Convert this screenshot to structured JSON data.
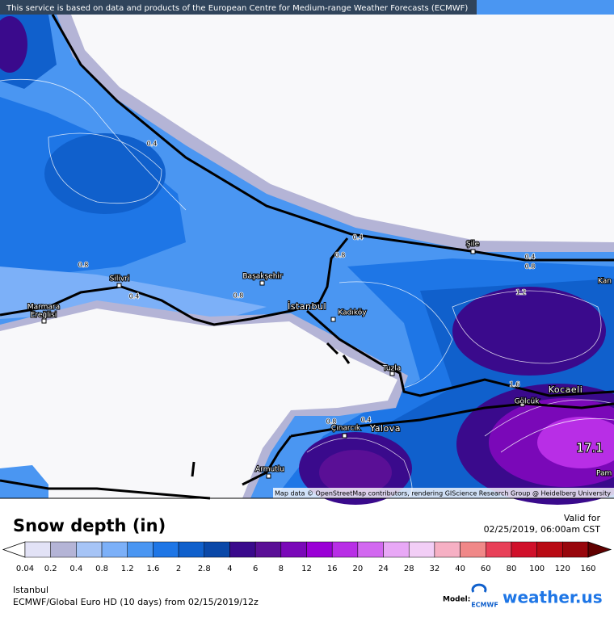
{
  "header": {
    "notice": "This service is based on data and products of the European Centre for Medium-range Weather Forecasts (ECMWF)"
  },
  "map": {
    "places": [
      "Silivri",
      "Marmara",
      "Ereğlisi",
      "Başakşehir",
      "İstanbul",
      "Kadıköy",
      "Şile",
      "Tuzla",
      "Gölcük",
      "Kocaeli",
      "Çınarcık",
      "Yalova",
      "Armutlu",
      "Kan",
      "Pam"
    ],
    "contour_labels": [
      "0.4",
      "0.8",
      "0.4",
      "0.8",
      "0.4",
      "0.8",
      "0.4",
      "0.8",
      "1.2",
      "1.6",
      "0.8",
      "0.4"
    ],
    "max_label": "17.1",
    "attribution": "Map data © OpenStreetMap contributors, rendering GIScience Research Group @ Heidelberg University"
  },
  "legend": {
    "title": "Snow depth (in)",
    "valid_label": "Valid for",
    "valid_time": "02/25/2019, 06:00am CST",
    "bins": [
      {
        "value": 0.04,
        "color": "#e2e2f6"
      },
      {
        "value": 0.2,
        "color": "#b4b4d6"
      },
      {
        "value": 0.4,
        "color": "#a6c4f6"
      },
      {
        "value": 0.8,
        "color": "#7cb0f8"
      },
      {
        "value": 1.2,
        "color": "#4a96f2"
      },
      {
        "value": 1.6,
        "color": "#1e76e6"
      },
      {
        "value": 2,
        "color": "#1060cc"
      },
      {
        "value": 2.8,
        "color": "#0a48a8"
      },
      {
        "value": 4,
        "color": "#3a0a8c"
      },
      {
        "value": 6,
        "color": "#5a0f96"
      },
      {
        "value": 8,
        "color": "#7a08b8"
      },
      {
        "value": 12,
        "color": "#9a00d6"
      },
      {
        "value": 16,
        "color": "#b82ee6"
      },
      {
        "value": 20,
        "color": "#d268f0"
      },
      {
        "value": 24,
        "color": "#e8a8f6"
      },
      {
        "value": 28,
        "color": "#f2cef6"
      },
      {
        "value": 32,
        "color": "#f6b0c4"
      },
      {
        "value": 40,
        "color": "#f08888"
      },
      {
        "value": 60,
        "color": "#e84058"
      },
      {
        "value": 80,
        "color": "#d0102a"
      },
      {
        "value": 100,
        "color": "#b80a14"
      },
      {
        "value": 120,
        "color": "#98060c"
      },
      {
        "value": 160,
        "color": "#600000"
      }
    ]
  },
  "footer": {
    "location": "Istanbul",
    "model_run": "ECMWF/Global Euro HD (10 days) from 02/15/2019/12z",
    "model_label": "Model:",
    "model_name": "ECMWF",
    "brand": "weather.us"
  }
}
